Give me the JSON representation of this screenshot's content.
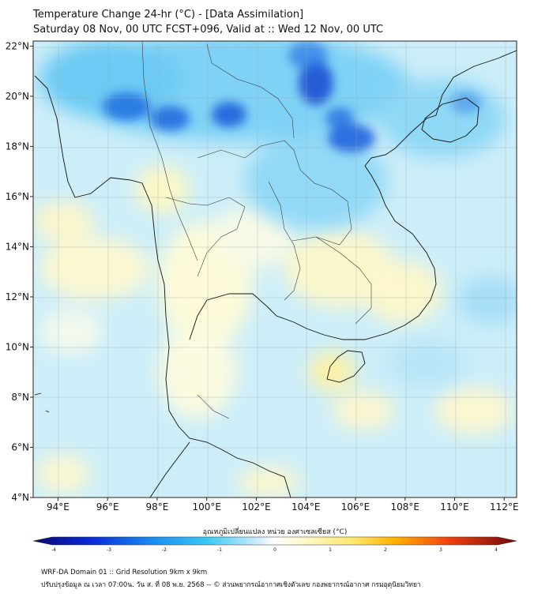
{
  "title_line1": "Temperature Change 24-hr (°C) - [Data Assimilation]",
  "title_line2": "Saturday 08 Nov, 00 UTC FCST+096, Valid at :: Wed 12 Nov, 00 UTC",
  "map": {
    "lon_range": [
      93,
      112.5
    ],
    "lat_range": [
      4,
      22.2
    ],
    "lat_ticks": [
      "22°N",
      "20°N",
      "18°N",
      "16°N",
      "14°N",
      "12°N",
      "10°N",
      "8°N",
      "6°N",
      "4°N"
    ],
    "lon_ticks": [
      "94°E",
      "96°E",
      "98°E",
      "100°E",
      "102°E",
      "104°E",
      "106°E",
      "108°E",
      "110°E",
      "112°E"
    ],
    "background_color": "#cdeef9"
  },
  "colorbar": {
    "title": "อุณหภูมิเปลี่ยนแปลง หน่วย องศาเซลเซียส (°C)",
    "tick_labels": [
      "-4",
      "-3",
      "-2",
      "-1",
      "0",
      "1",
      "2",
      "3",
      "4"
    ],
    "range": [
      -4,
      4
    ]
  },
  "footer_line1": "WRF-DA Domain 01 :: Grid Resolution 9km x 9km",
  "footer_line2": "ปรับปรุงข้อมูล ณ เวลา 07:00น. วัน ส. ที่ 08 พ.ย. 2568 -- © ส่วนพยากรณ์อากาศเชิงตัวเลข กองพยากรณ์อากาศ กรมอุตุนิยมวิทยา"
}
